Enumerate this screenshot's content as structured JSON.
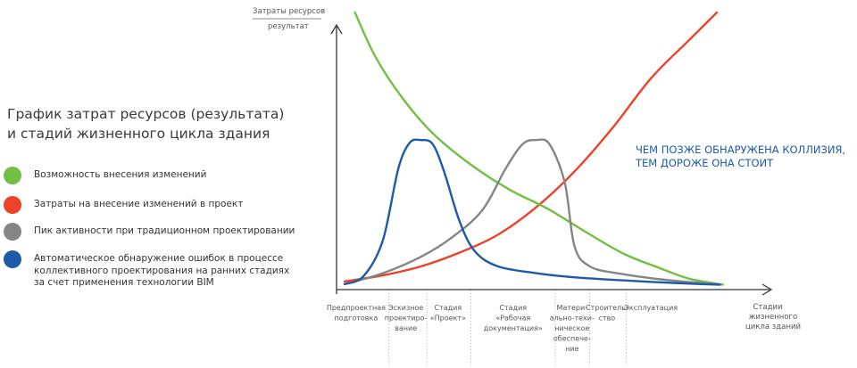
{
  "chart_data": {
    "type": "line",
    "title_lines": [
      "График затрат ресурсов (результата)",
      "и стадий жизненного цикла здания"
    ],
    "ylabel_lines": [
      "Затраты ресурсов",
      "результат"
    ],
    "xlabel_lines": [
      "Стадии",
      "жизненного",
      "цикла зданий"
    ],
    "annotation_lines": [
      "ЧЕМ ПОЗЖЕ ОБНАРУЖЕНА КОЛЛИЗИЯ,",
      "ТЕМ ДОРОЖЕ ОНА СТОИТ"
    ],
    "x_range": [
      0,
      1
    ],
    "y_range": [
      0,
      1
    ],
    "stages": [
      {
        "lines": [
          "Предпроектная",
          "подготовка"
        ],
        "x": 0.03,
        "boundary": 0.115
      },
      {
        "lines": [
          "Эскизное",
          "проектиро-",
          "вание"
        ],
        "x": 0.16,
        "boundary": 0.215
      },
      {
        "lines": [
          "Стадия",
          "«Проект»"
        ],
        "x": 0.27,
        "boundary": 0.33
      },
      {
        "lines": [
          "Стадия",
          "«Рабочая",
          "документация»"
        ],
        "x": 0.44,
        "boundary": 0.55
      },
      {
        "lines": [
          "Матери-",
          "ально-техи-",
          "ническое",
          "обеспече-",
          "ние"
        ],
        "x": 0.594,
        "boundary": 0.64
      },
      {
        "lines": [
          "Строитель-",
          "ство"
        ],
        "x": 0.685,
        "boundary": 0.735
      },
      {
        "lines": [
          "Эксплуатация"
        ],
        "x": 0.8,
        "boundary": null
      }
    ],
    "series": [
      {
        "name": "Возможность внесения изменений",
        "color": "#72bf44",
        "points": [
          [
            0.027,
            1.0
          ],
          [
            0.08,
            0.84
          ],
          [
            0.15,
            0.69
          ],
          [
            0.23,
            0.56
          ],
          [
            0.33,
            0.445
          ],
          [
            0.43,
            0.355
          ],
          [
            0.53,
            0.285
          ],
          [
            0.63,
            0.2
          ],
          [
            0.73,
            0.12
          ],
          [
            0.82,
            0.07
          ],
          [
            0.9,
            0.03
          ],
          [
            0.988,
            0.008
          ]
        ]
      },
      {
        "name": "Затраты на внесение изменений в проект",
        "color": "#ee4129",
        "points": [
          [
            0.0,
            0.02
          ],
          [
            0.1,
            0.042
          ],
          [
            0.2,
            0.075
          ],
          [
            0.3,
            0.125
          ],
          [
            0.4,
            0.19
          ],
          [
            0.5,
            0.29
          ],
          [
            0.6,
            0.42
          ],
          [
            0.7,
            0.58
          ],
          [
            0.8,
            0.76
          ],
          [
            0.9,
            0.9
          ],
          [
            0.972,
            1.0
          ]
        ]
      },
      {
        "name": "Пик активности при традиционном проектировании",
        "color": "#858585",
        "points": [
          [
            0.0,
            0.01
          ],
          [
            0.1,
            0.05
          ],
          [
            0.2,
            0.11
          ],
          [
            0.28,
            0.18
          ],
          [
            0.36,
            0.28
          ],
          [
            0.42,
            0.43
          ],
          [
            0.465,
            0.52
          ],
          [
            0.5,
            0.535
          ],
          [
            0.535,
            0.52
          ],
          [
            0.575,
            0.38
          ],
          [
            0.6,
            0.15
          ],
          [
            0.64,
            0.075
          ],
          [
            0.72,
            0.048
          ],
          [
            0.85,
            0.024
          ],
          [
            0.98,
            0.01
          ]
        ]
      },
      {
        "name": "Автоматическое обнаружение ошибок в процессе коллективного проектирования на ранних стадиях за счет применения технологии BIM",
        "color": "#1e5aa8",
        "points": [
          [
            0.0,
            0.01
          ],
          [
            0.05,
            0.04
          ],
          [
            0.1,
            0.17
          ],
          [
            0.14,
            0.43
          ],
          [
            0.17,
            0.525
          ],
          [
            0.2,
            0.535
          ],
          [
            0.23,
            0.52
          ],
          [
            0.26,
            0.42
          ],
          [
            0.3,
            0.24
          ],
          [
            0.34,
            0.13
          ],
          [
            0.4,
            0.075
          ],
          [
            0.5,
            0.05
          ],
          [
            0.6,
            0.035
          ],
          [
            0.75,
            0.022
          ],
          [
            0.9,
            0.012
          ],
          [
            0.98,
            0.008
          ]
        ]
      }
    ],
    "legend_position": "left",
    "grid": false
  },
  "legend_lines": [
    [
      "Возможность внесения изменений"
    ],
    [
      "Затраты на внесение изменений в проект"
    ],
    [
      "Пик активности при традиционном проектировании"
    ],
    [
      "Автоматическое обнаружение ошибок в процессе",
      "коллективного проектирования на ранних стадиях",
      "за счет применения технологии BIM"
    ]
  ]
}
